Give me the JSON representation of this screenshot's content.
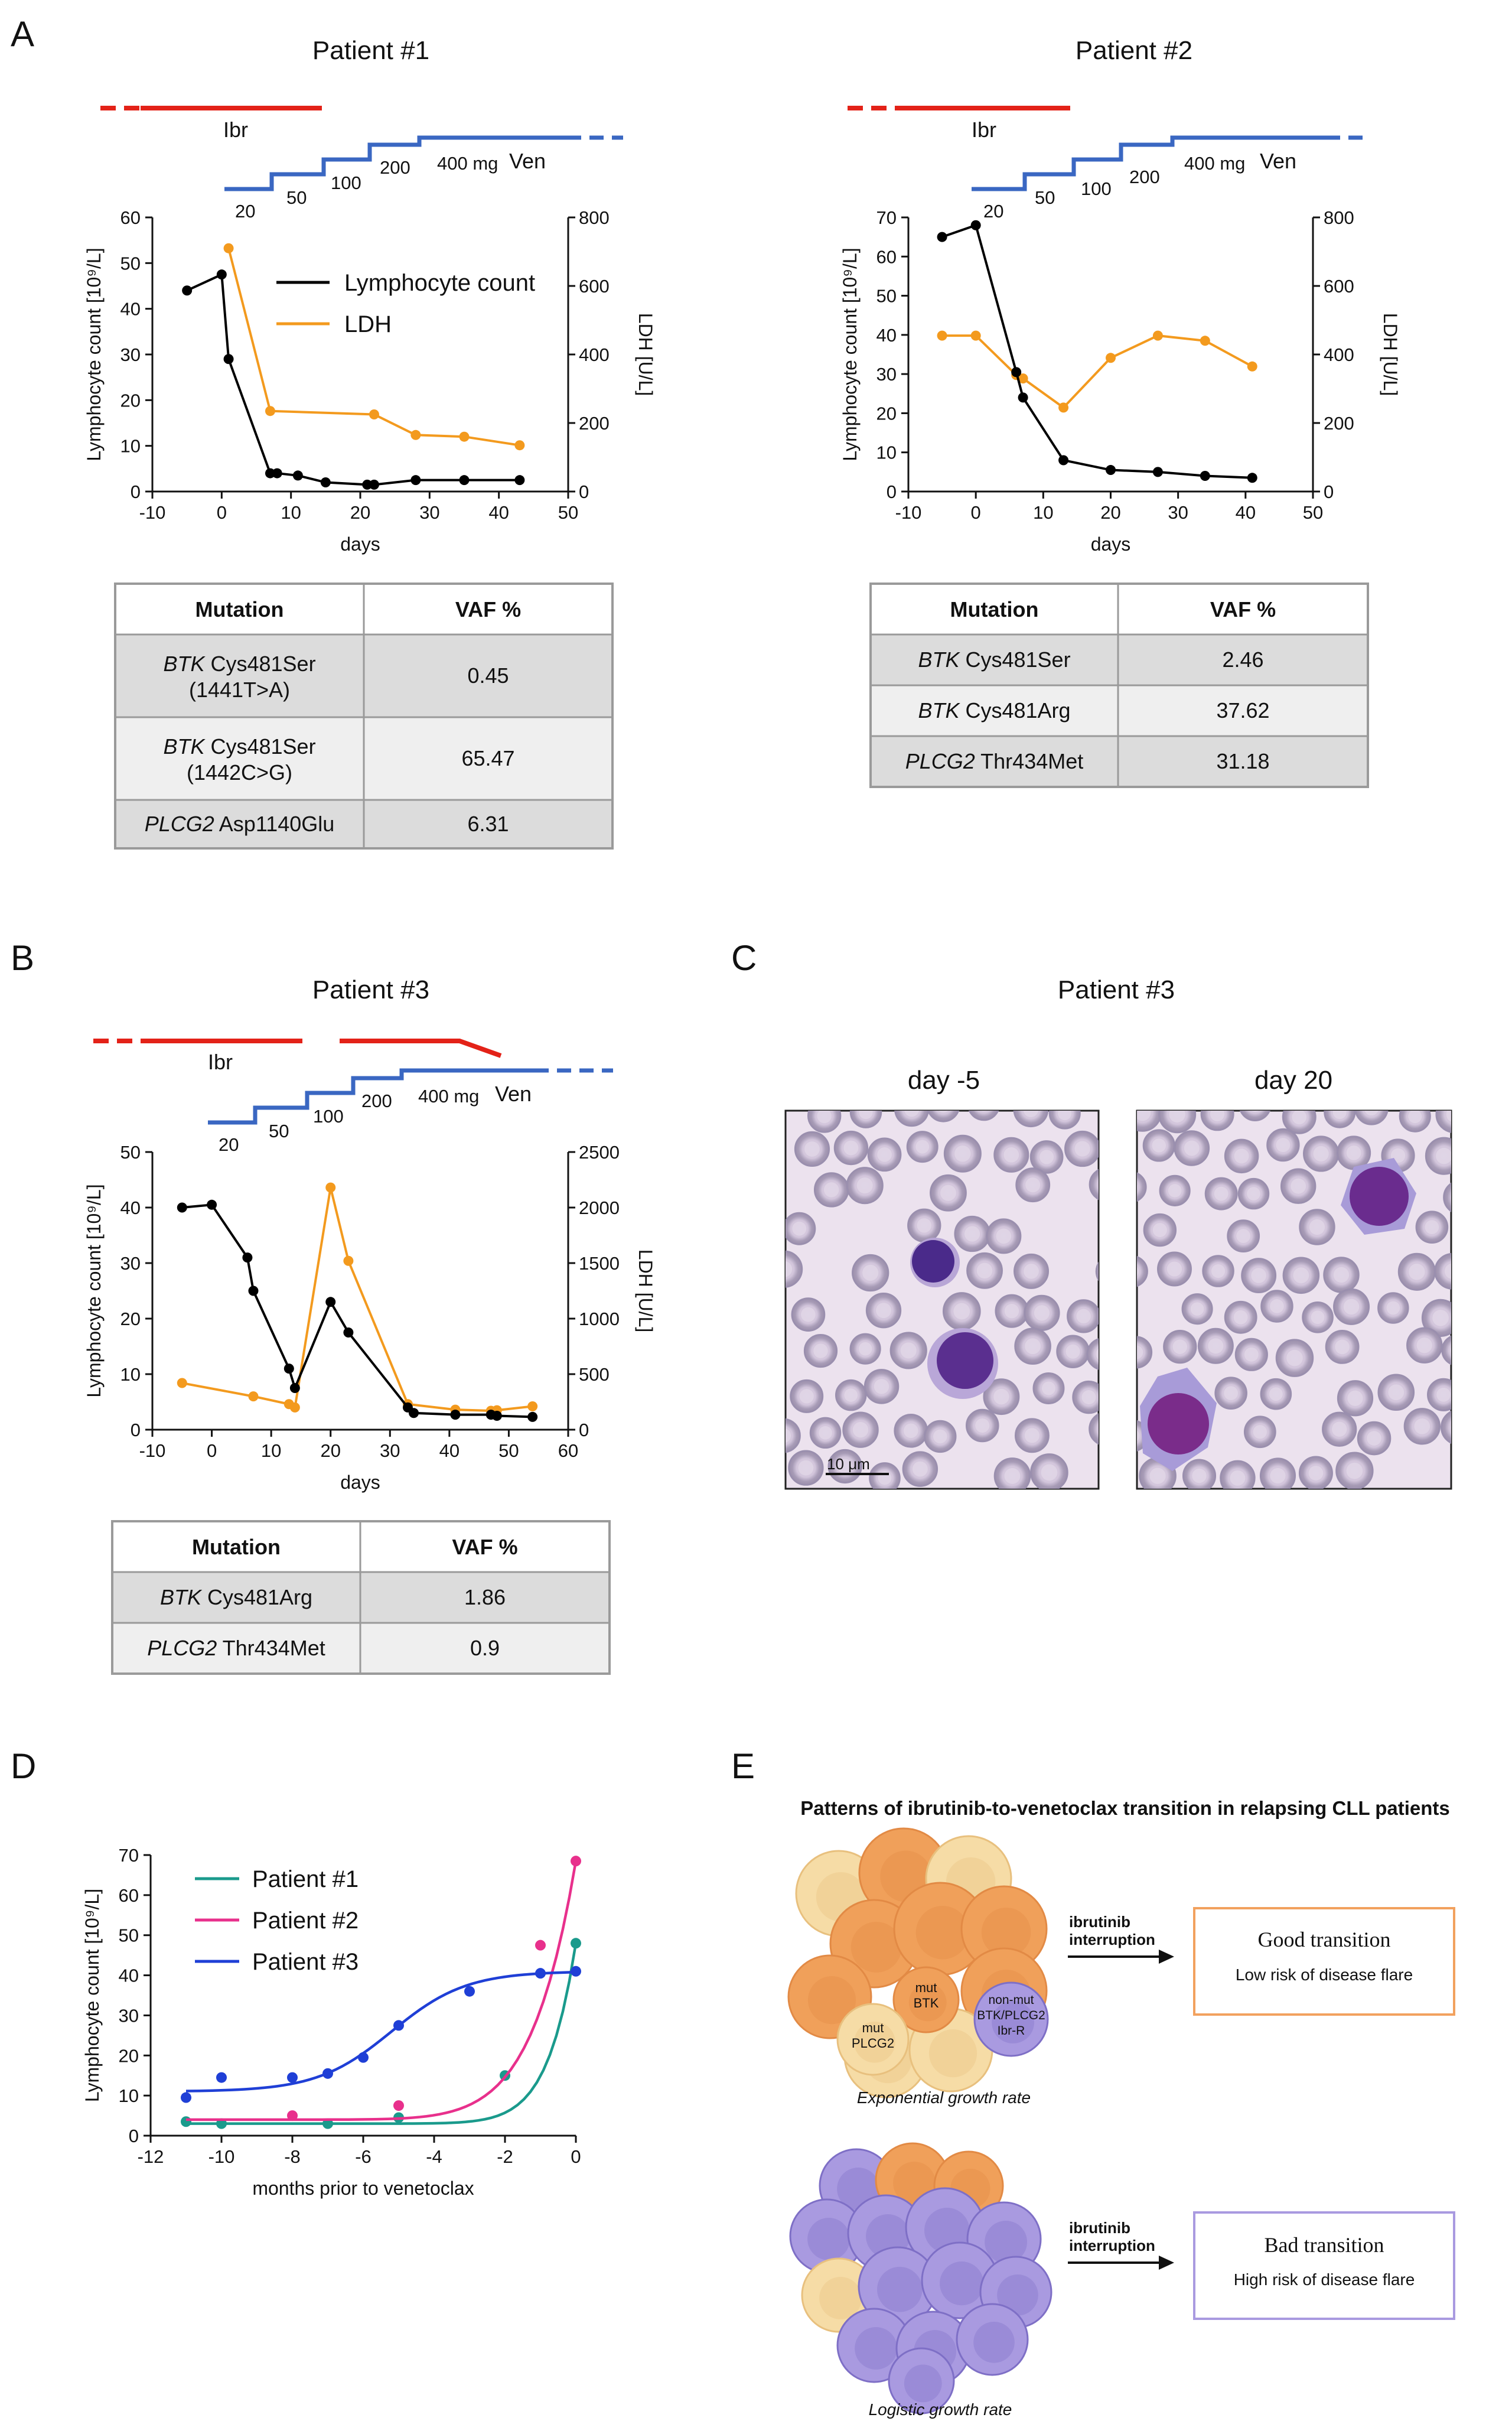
{
  "panels": {
    "A": "A",
    "B": "B",
    "C": "C",
    "D": "D",
    "E": "E"
  },
  "treatment_labels": {
    "ibr": "Ibr",
    "ven": "Ven"
  },
  "doses": [
    "20",
    "50",
    "100",
    "200",
    "400 mg"
  ],
  "table_headers": {
    "mutation": "Mutation",
    "vaf": "VAF %"
  },
  "chart_data": [
    {
      "id": "p1",
      "type": "line",
      "title": "Patient #1",
      "xlabel": "days",
      "ylabel": "Lymphocyte count [10⁹/L]",
      "y2label": "LDH [U/L]",
      "xlim": [
        -10,
        50
      ],
      "ylim": [
        0,
        60
      ],
      "y2lim": [
        0,
        800
      ],
      "xticks": [
        -10,
        0,
        10,
        20,
        30,
        40,
        50
      ],
      "yticks": [
        0,
        10,
        20,
        30,
        40,
        50,
        60
      ],
      "y2ticks": [
        0,
        200,
        400,
        600,
        800
      ],
      "legend": "top-center",
      "series": [
        {
          "name": "Lymphocyte count",
          "axis": "left",
          "color": "#000000",
          "x": [
            -5,
            0,
            1,
            7,
            8,
            11,
            15,
            21,
            22,
            28,
            35,
            43
          ],
          "y": [
            44,
            47.5,
            29,
            4,
            4,
            3.5,
            2,
            1.5,
            1.5,
            2.5,
            2.5,
            2.5
          ]
        },
        {
          "name": "LDH",
          "axis": "right",
          "color": "#f39a1e",
          "x": [
            1,
            7,
            22,
            28,
            35,
            43
          ],
          "y": [
            710,
            235,
            225,
            165,
            160,
            135
          ]
        }
      ],
      "table": [
        {
          "gene": "BTK",
          "mutation": "Cys481Ser",
          "sub": "(1441T>A)",
          "vaf": "0.45"
        },
        {
          "gene": "BTK",
          "mutation": "Cys481Ser",
          "sub": "(1442C>G)",
          "vaf": "65.47"
        },
        {
          "gene": "PLCG2",
          "mutation": "Asp1140Glu",
          "sub": "",
          "vaf": "6.31"
        }
      ]
    },
    {
      "id": "p2",
      "type": "line",
      "title": "Patient #2",
      "xlabel": "days",
      "ylabel": "Lymphocyte count [10⁹/L]",
      "y2label": "LDH [U/L]",
      "xlim": [
        -10,
        50
      ],
      "ylim": [
        0,
        70
      ],
      "y2lim": [
        0,
        800
      ],
      "xticks": [
        -10,
        0,
        10,
        20,
        30,
        40,
        50
      ],
      "yticks": [
        0,
        10,
        20,
        30,
        40,
        50,
        60,
        70
      ],
      "y2ticks": [
        0,
        200,
        400,
        600,
        800
      ],
      "series": [
        {
          "name": "Lymphocyte count",
          "axis": "left",
          "color": "#000000",
          "x": [
            -5,
            0,
            6,
            7,
            13,
            20,
            27,
            34,
            41
          ],
          "y": [
            65,
            68,
            30.5,
            24,
            8,
            5.5,
            5,
            4,
            3.5
          ]
        },
        {
          "name": "LDH",
          "axis": "right",
          "color": "#f39a1e",
          "x": [
            -5,
            0,
            6,
            7,
            13,
            20,
            27,
            34,
            41
          ],
          "y": [
            455,
            455,
            340,
            330,
            245,
            390,
            455,
            440,
            365
          ]
        }
      ],
      "table": [
        {
          "gene": "BTK",
          "mutation": "Cys481Ser",
          "sub": "",
          "vaf": "2.46"
        },
        {
          "gene": "BTK",
          "mutation": "Cys481Arg",
          "sub": "",
          "vaf": "37.62"
        },
        {
          "gene": "PLCG2",
          "mutation": "Thr434Met",
          "sub": "",
          "vaf": "31.18"
        }
      ]
    },
    {
      "id": "p3",
      "type": "line",
      "title": "Patient #3",
      "xlabel": "days",
      "ylabel": "Lymphocyte count [10⁹/L]",
      "y2label": "LDH [U/L]",
      "xlim": [
        -10,
        60
      ],
      "ylim": [
        0,
        50
      ],
      "y2lim": [
        0,
        2500
      ],
      "xticks": [
        -10,
        0,
        10,
        20,
        30,
        40,
        50,
        60
      ],
      "yticks": [
        0,
        10,
        20,
        30,
        40,
        50
      ],
      "y2ticks": [
        0,
        500,
        1000,
        1500,
        2000,
        2500
      ],
      "series": [
        {
          "name": "Lymphocyte count",
          "axis": "left",
          "color": "#000000",
          "x": [
            -5,
            0,
            6,
            7,
            13,
            14,
            20,
            23,
            33,
            34,
            41,
            47,
            48,
            54
          ],
          "y": [
            40,
            40.5,
            31,
            25,
            11,
            7.5,
            23,
            17.5,
            4,
            3,
            2.7,
            2.7,
            2.5,
            2.3
          ]
        },
        {
          "name": "LDH",
          "axis": "right",
          "color": "#f39a1e",
          "x": [
            -5,
            7,
            13,
            14,
            20,
            23,
            33,
            41,
            47,
            48,
            54
          ],
          "y": [
            420,
            300,
            230,
            200,
            2180,
            1520,
            230,
            180,
            170,
            175,
            210
          ]
        }
      ],
      "table": [
        {
          "gene": "BTK",
          "mutation": "Cys481Arg",
          "sub": "",
          "vaf": "1.86"
        },
        {
          "gene": "PLCG2",
          "mutation": "Thr434Met",
          "sub": "",
          "vaf": "0.9"
        }
      ]
    },
    {
      "id": "pD",
      "type": "scatter",
      "title": "",
      "xlabel": "months prior to venetoclax",
      "ylabel": "Lymphocyte count [10⁹/L]",
      "xlim": [
        -12,
        0
      ],
      "ylim": [
        0,
        70
      ],
      "xticks": [
        -12,
        -10,
        -8,
        -6,
        -4,
        -2,
        0
      ],
      "yticks": [
        0,
        10,
        20,
        30,
        40,
        50,
        60,
        70
      ],
      "legend": "top-left",
      "series": [
        {
          "name": "Patient #1",
          "color": "#1a9a8c",
          "x": [
            -11,
            -10,
            -7,
            -5,
            -2,
            0
          ],
          "y": [
            3.5,
            3,
            3,
            4.5,
            15,
            48
          ]
        },
        {
          "name": "Patient #2",
          "color": "#e8308c",
          "x": [
            -8,
            -5,
            -1,
            0
          ],
          "y": [
            5,
            7.5,
            47.5,
            68.5
          ]
        },
        {
          "name": "Patient #3",
          "color": "#1f3fd6",
          "x": [
            -11,
            -10,
            -8,
            -7,
            -6,
            -5,
            -3,
            -1,
            0
          ],
          "y": [
            9.5,
            14.5,
            14.5,
            15.5,
            19.5,
            27.5,
            36,
            40.5,
            41
          ]
        }
      ]
    }
  ],
  "panel_c": {
    "title": "Patient #3",
    "left_label": "day -5",
    "right_label": "day 20",
    "scale_bar": "10 μm"
  },
  "panel_e": {
    "title": "Patterns of ibrutinib-to-venetoclax transition in relapsing CLL patients",
    "arrow_label_1": "ibrutinib",
    "arrow_label_2": "interruption",
    "good_title": "Good transition",
    "good_sub": "Low risk of disease flare",
    "bad_title": "Bad transition",
    "bad_sub": "High risk of disease flare",
    "mut_btk": [
      "mut",
      "BTK"
    ],
    "mut_plcg2": [
      "mut",
      "PLCG2"
    ],
    "non_mut": [
      "non-mut",
      "BTK/PLCG2",
      "Ibr-R"
    ],
    "top_caption": "Exponential growth rate",
    "bottom_caption": "Logistic growth rate",
    "colors": {
      "orange": "#f0a05a",
      "yellow": "#f6dca6",
      "purple": "#a99ae0",
      "good_border": "#f2a15e",
      "bad_border": "#a99ae0"
    }
  }
}
